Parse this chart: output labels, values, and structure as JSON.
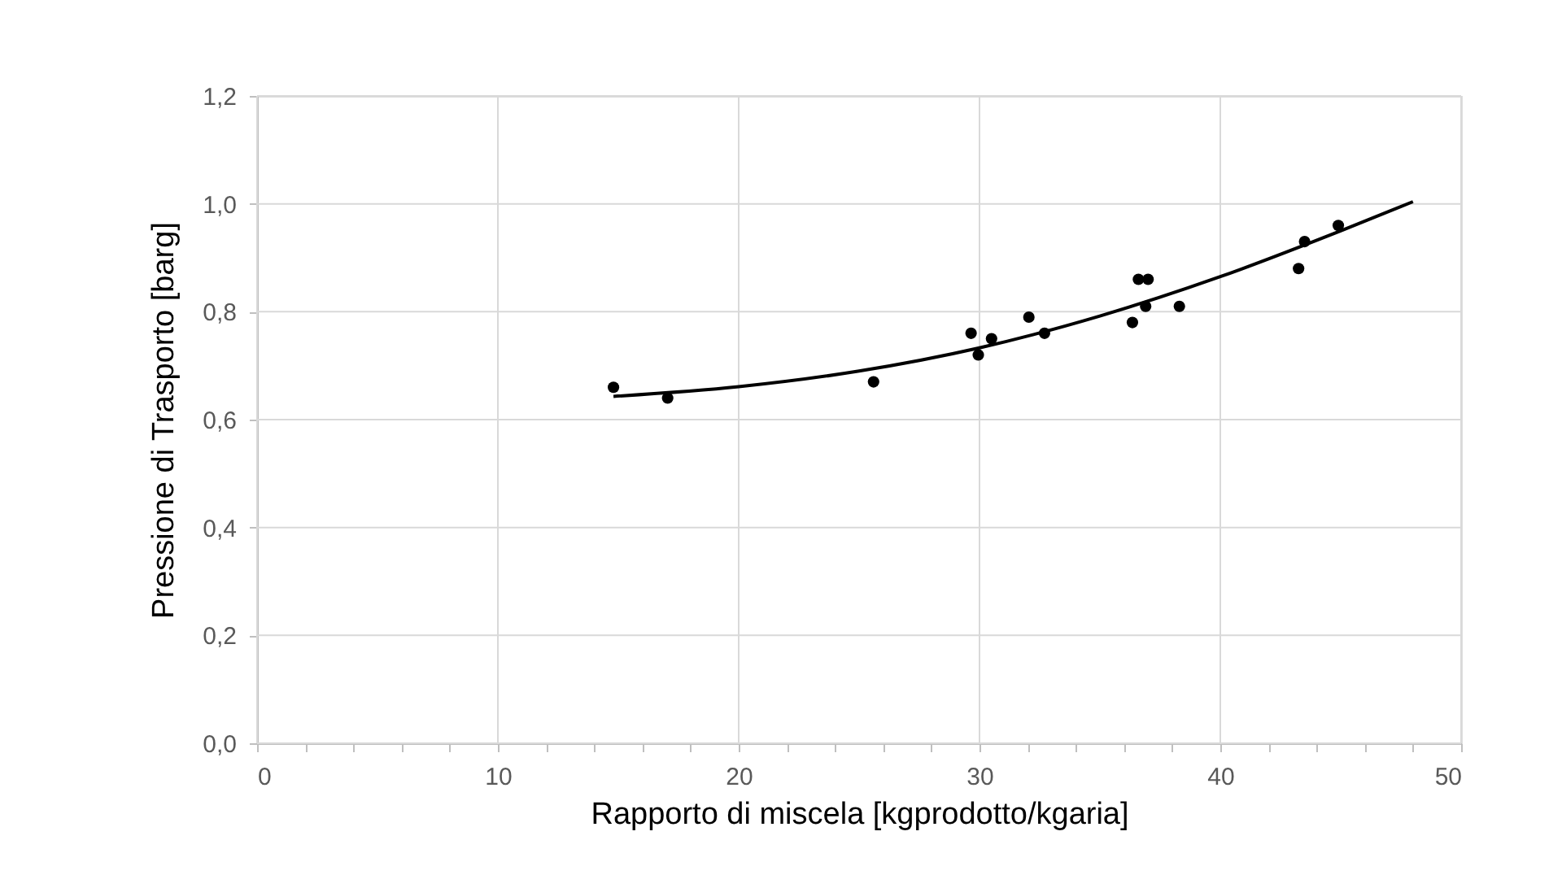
{
  "chart_data": {
    "type": "scatter",
    "xlabel": "Rapporto di miscela [kgprodotto/kgaria]",
    "ylabel": "Pressione di  Trasporto [barg]",
    "series": [
      {
        "color": "#000000",
        "marker": "circle",
        "x": [
          14.8,
          17.05,
          25.6,
          29.65,
          29.95,
          30.5,
          32.05,
          32.7,
          36.35,
          36.6,
          37.0,
          36.9,
          38.3,
          43.25,
          43.5,
          44.9
        ],
        "values": [
          0.66,
          0.64,
          0.67,
          0.76,
          0.72,
          0.75,
          0.79,
          0.76,
          0.78,
          0.86,
          0.86,
          0.81,
          0.81,
          0.88,
          0.93,
          0.96
        ]
      },
      {
        "type": "line",
        "color": "#000000",
        "line_style": "solid",
        "x": [
          14.8,
          20,
          25,
          30,
          35,
          40,
          45,
          48
        ],
        "values": [
          0.643,
          0.661,
          0.69,
          0.733,
          0.792,
          0.865,
          0.95,
          1.004
        ]
      }
    ],
    "xlim": [
      0,
      50
    ],
    "xticks": [
      0,
      {
        "value": 2,
        "label": null
      },
      {
        "value": 4,
        "label": null
      },
      {
        "value": 6,
        "label": null
      },
      {
        "value": 8,
        "label": null
      },
      10,
      {
        "value": 12,
        "label": null
      },
      {
        "value": 14,
        "label": null
      },
      {
        "value": 16,
        "label": null
      },
      {
        "value": 18,
        "label": null
      },
      20,
      {
        "value": 22,
        "label": null
      },
      {
        "value": 24,
        "label": null
      },
      {
        "value": 26,
        "label": null
      },
      {
        "value": 28,
        "label": null
      },
      30,
      {
        "value": 32,
        "label": null
      },
      {
        "value": 34,
        "label": null
      },
      {
        "value": 36,
        "label": null
      },
      {
        "value": 38,
        "label": null
      },
      40,
      {
        "value": 42,
        "label": null
      },
      {
        "value": 44,
        "label": null
      },
      {
        "value": 46,
        "label": null
      },
      {
        "value": 48,
        "label": null
      },
      50
    ],
    "ylim": [
      0,
      1.2
    ],
    "yticks": [
      {
        "value": 0,
        "label": "0,0"
      },
      {
        "value": 0.2,
        "label": "0,2"
      },
      {
        "value": 0.4,
        "label": "0,4"
      },
      {
        "value": 0.6,
        "label": "0,6"
      },
      {
        "value": 0.8,
        "label": "0,8"
      },
      {
        "value": 1.0,
        "label": "1,0"
      },
      {
        "value": 1.2,
        "label": "1,2"
      }
    ],
    "grid": true
  }
}
